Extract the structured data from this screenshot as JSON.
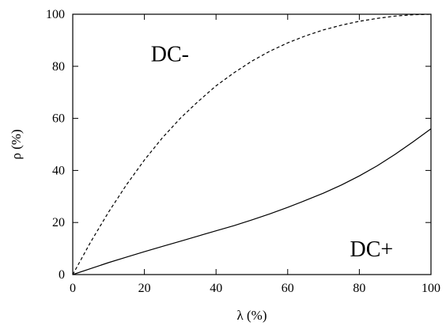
{
  "chart_data": {
    "type": "line",
    "title": "",
    "xlabel": "λ (%)",
    "ylabel": "ρ (%)",
    "xlim": [
      0,
      100
    ],
    "ylim": [
      0,
      100
    ],
    "xticks": [
      0,
      20,
      40,
      60,
      80,
      100
    ],
    "yticks": [
      0,
      20,
      40,
      60,
      80,
      100
    ],
    "grid": false,
    "annotations": [
      {
        "text": "DC-",
        "x": 24,
        "y": 85
      },
      {
        "text": "DC+",
        "x": 84,
        "y": 10
      }
    ],
    "series": [
      {
        "style": "dashed",
        "x": [
          0,
          5,
          10,
          15,
          20,
          25,
          30,
          35,
          40,
          45,
          50,
          55,
          60,
          65,
          70,
          75,
          80,
          85,
          90,
          95,
          100
        ],
        "y": [
          0,
          12.5,
          24,
          34.5,
          44,
          52.5,
          60,
          66.5,
          72.5,
          77.5,
          82,
          85.8,
          89,
          91.7,
          94,
          95.8,
          97.3,
          98.4,
          99.3,
          99.8,
          100
        ]
      },
      {
        "style": "solid",
        "x": [
          0,
          5,
          10,
          15,
          20,
          25,
          30,
          35,
          40,
          45,
          50,
          55,
          60,
          65,
          70,
          75,
          80,
          85,
          90,
          95,
          100
        ],
        "y": [
          0,
          2.3,
          4.6,
          6.7,
          8.8,
          10.8,
          12.8,
          14.8,
          16.8,
          18.8,
          21,
          23.3,
          25.8,
          28.5,
          31.3,
          34.4,
          37.9,
          41.8,
          46.2,
          51,
          56
        ]
      }
    ]
  }
}
